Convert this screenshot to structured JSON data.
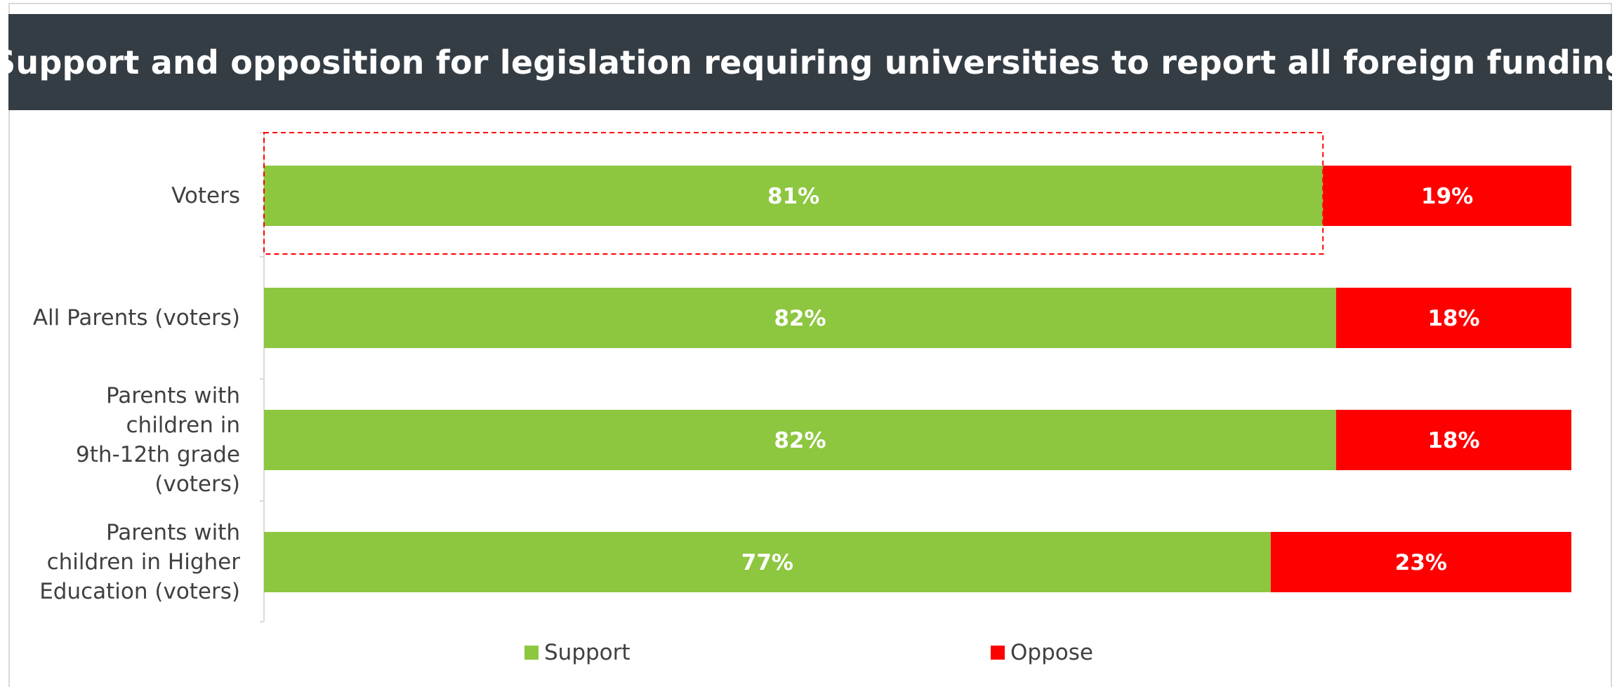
{
  "chart_data": {
    "type": "bar",
    "orientation": "horizontal",
    "stacked": true,
    "title": "Support and opposition for legislation requiring universities to report all foreign funding",
    "categories": [
      "Voters",
      "All Parents (voters)",
      "Parents with children in 9th-12th grade (voters)",
      "Parents with children in Higher Education (voters)"
    ],
    "series": [
      {
        "name": "Support",
        "color": "#8dc63f",
        "values": [
          81,
          82,
          82,
          77
        ],
        "labels": [
          "81%",
          "82%",
          "82%",
          "77%"
        ]
      },
      {
        "name": "Oppose",
        "color": "#ff0000",
        "values": [
          19,
          18,
          18,
          23
        ],
        "labels": [
          "19%",
          "18%",
          "18%",
          "23%"
        ]
      }
    ],
    "xlim": [
      0,
      100
    ],
    "legend": "bottom",
    "grid": false,
    "highlight": {
      "category": "Voters",
      "series": "Support",
      "style": "dashed-red-box"
    }
  }
}
